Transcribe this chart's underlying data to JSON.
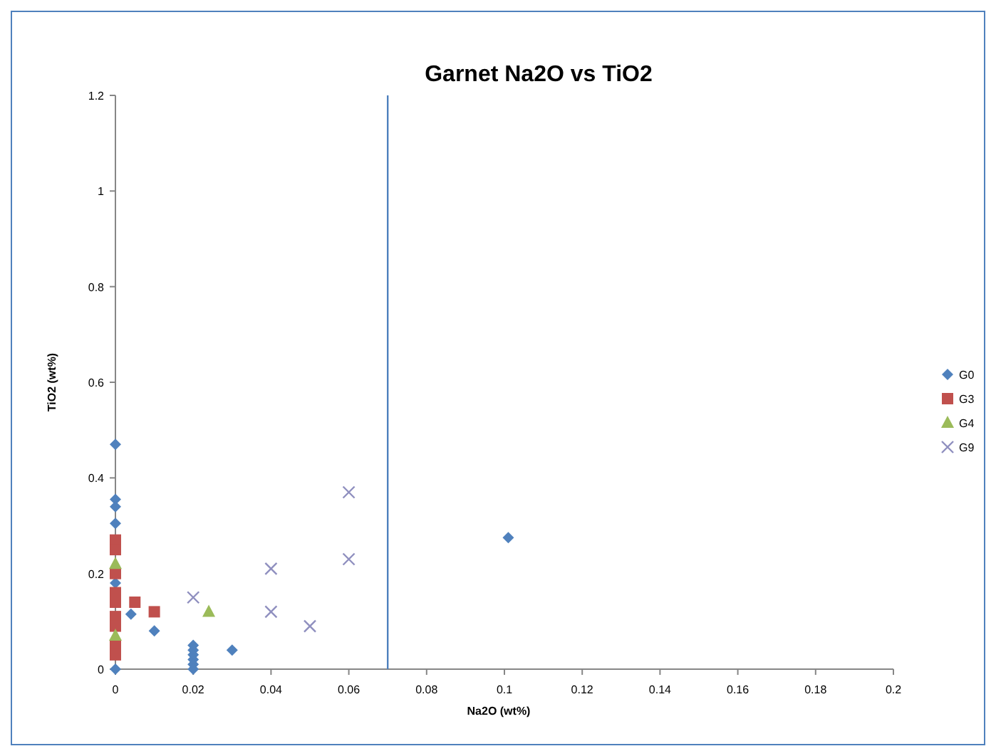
{
  "chart_data": {
    "type": "scatter",
    "title": "Garnet Na2O vs TiO2",
    "xlabel": "Na2O (wt%)",
    "ylabel": "TiO2 (wt%)",
    "xlim": [
      0,
      0.2
    ],
    "xticks": [
      0,
      0.02,
      0.04,
      0.06,
      0.08,
      0.1,
      0.12,
      0.14,
      0.16,
      0.18,
      0.2
    ],
    "ylim": [
      0,
      1.2
    ],
    "yticks": [
      0,
      0.2,
      0.4,
      0.6,
      0.8,
      1,
      1.2
    ],
    "grid": false,
    "legend": "right",
    "ref_lines": [
      {
        "axis": "x",
        "value": 0.07,
        "color": "#4f81bd"
      }
    ],
    "series": [
      {
        "name": "G0",
        "color": "#4f81bd",
        "marker": "diamond",
        "x": [
          0,
          0,
          0,
          0,
          0,
          0,
          0.004,
          0.01,
          0.02,
          0.02,
          0.02,
          0.02,
          0.02,
          0.02,
          0.03,
          0.101
        ],
        "values": [
          0.47,
          0.355,
          0.34,
          0.305,
          0.18,
          0,
          0.115,
          0.08,
          0.05,
          0.04,
          0.03,
          0.02,
          0.01,
          0,
          0.04,
          0.275
        ]
      },
      {
        "name": "G3",
        "color": "#c0504d",
        "marker": "square",
        "x": [
          0,
          0,
          0,
          0,
          0,
          0,
          0,
          0,
          0,
          0.005,
          0.01
        ],
        "values": [
          0.27,
          0.25,
          0.2,
          0.16,
          0.14,
          0.11,
          0.09,
          0.05,
          0.03,
          0.14,
          0.12
        ]
      },
      {
        "name": "G4",
        "color": "#9bbb59",
        "marker": "triangle",
        "x": [
          0,
          0,
          0.024
        ],
        "values": [
          0.22,
          0.07,
          0.12
        ]
      },
      {
        "name": "G9",
        "color": "#8f8fbf",
        "marker": "cross",
        "x": [
          0.02,
          0.04,
          0.04,
          0.05,
          0.06,
          0.06
        ],
        "values": [
          0.15,
          0.21,
          0.12,
          0.09,
          0.37,
          0.23
        ]
      }
    ]
  }
}
